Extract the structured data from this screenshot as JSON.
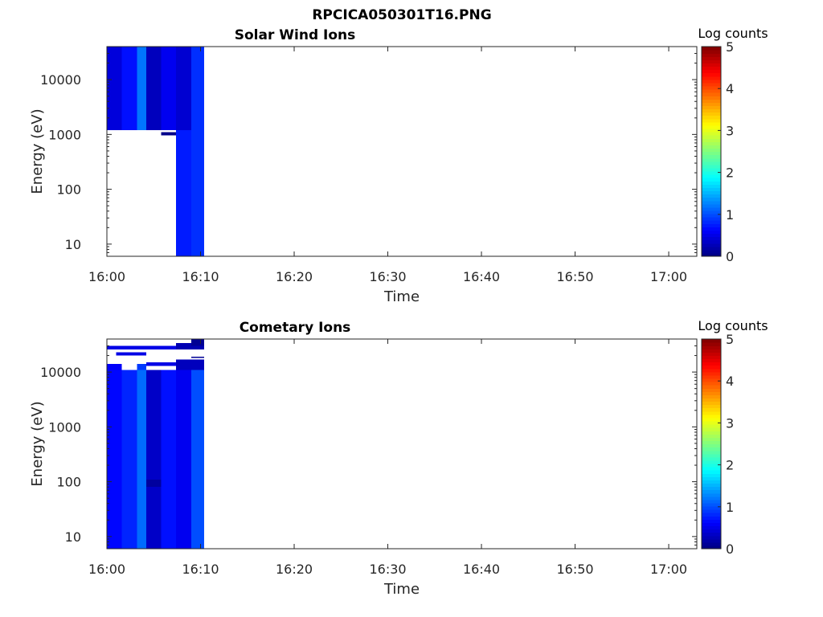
{
  "figure_title": "RPCICA050301T16.PNG",
  "chart_data": [
    {
      "type": "heatmap",
      "title": "Solar Wind Ions",
      "xlabel": "Time",
      "ylabel": "Energy (eV)",
      "y_scale": "log",
      "xlim": [
        "16:00",
        "17:03"
      ],
      "ylim": [
        6,
        40000
      ],
      "x_ticks": [
        "16:00",
        "16:10",
        "16:20",
        "16:30",
        "16:40",
        "16:50",
        "17:00"
      ],
      "y_ticks": [
        "10",
        "100",
        "1000",
        "10000"
      ],
      "colorbar": {
        "label": "Log counts",
        "min": 0,
        "max": 5,
        "ticks": [
          "0",
          "1",
          "2",
          "3",
          "4",
          "5"
        ],
        "colormap": "jet"
      },
      "cells": [
        {
          "t0": 0.0,
          "t1": 1.6,
          "e0": 1200,
          "e1": 40000,
          "v": 0.45
        },
        {
          "t0": 1.6,
          "t1": 3.2,
          "e0": 1200,
          "e1": 40000,
          "v": 0.7
        },
        {
          "t0": 3.2,
          "t1": 4.2,
          "e0": 1200,
          "e1": 40000,
          "v": 1.2
        },
        {
          "t0": 4.2,
          "t1": 5.8,
          "e0": 1200,
          "e1": 40000,
          "v": 0.3
        },
        {
          "t0": 5.8,
          "t1": 7.4,
          "e0": 1200,
          "e1": 40000,
          "v": 0.55
        },
        {
          "t0": 7.4,
          "t1": 9.0,
          "e0": 1200,
          "e1": 40000,
          "v": 0.4
        },
        {
          "t0": 7.4,
          "t1": 9.0,
          "e0": 6,
          "e1": 1200,
          "v": 0.75
        },
        {
          "t0": 9.0,
          "t1": 10.4,
          "e0": 6,
          "e1": 40000,
          "v": 0.85
        },
        {
          "t0": 5.8,
          "t1": 7.4,
          "e0": 960,
          "e1": 1100,
          "v": 0.05
        }
      ]
    },
    {
      "type": "heatmap",
      "title": "Cometary Ions",
      "xlabel": "Time",
      "ylabel": "Energy (eV)",
      "y_scale": "log",
      "xlim": [
        "16:00",
        "17:03"
      ],
      "ylim": [
        6,
        40000
      ],
      "x_ticks": [
        "16:00",
        "16:10",
        "16:20",
        "16:30",
        "16:40",
        "16:50",
        "17:00"
      ],
      "y_ticks": [
        "10",
        "100",
        "1000",
        "10000"
      ],
      "colorbar": {
        "label": "Log counts",
        "min": 0,
        "max": 5,
        "ticks": [
          "0",
          "1",
          "2",
          "3",
          "4",
          "5"
        ],
        "colormap": "jet"
      },
      "cells": [
        {
          "t0": 0.0,
          "t1": 1.6,
          "e0": 6,
          "e1": 11000,
          "v": 0.65
        },
        {
          "t0": 1.6,
          "t1": 3.2,
          "e0": 6,
          "e1": 11000,
          "v": 0.8
        },
        {
          "t0": 3.2,
          "t1": 4.2,
          "e0": 6,
          "e1": 11000,
          "v": 1.15
        },
        {
          "t0": 4.2,
          "t1": 5.8,
          "e0": 6,
          "e1": 11000,
          "v": 0.35
        },
        {
          "t0": 5.8,
          "t1": 7.4,
          "e0": 6,
          "e1": 11000,
          "v": 0.7
        },
        {
          "t0": 7.4,
          "t1": 9.0,
          "e0": 6,
          "e1": 11000,
          "v": 0.55
        },
        {
          "t0": 9.0,
          "t1": 10.4,
          "e0": 6,
          "e1": 11000,
          "v": 1.0
        },
        {
          "t0": 0.0,
          "t1": 1.6,
          "e0": 11000,
          "e1": 14000,
          "v": 0.6
        },
        {
          "t0": 3.2,
          "t1": 4.2,
          "e0": 11000,
          "e1": 14000,
          "v": 0.9
        },
        {
          "t0": 7.4,
          "t1": 10.4,
          "e0": 11000,
          "e1": 17000,
          "v": 0.3
        },
        {
          "t0": 4.2,
          "t1": 7.4,
          "e0": 13000,
          "e1": 15000,
          "v": 0.5
        },
        {
          "t0": 1.0,
          "t1": 4.2,
          "e0": 20000,
          "e1": 23000,
          "v": 0.5
        },
        {
          "t0": 0.0,
          "t1": 7.4,
          "e0": 26000,
          "e1": 30000,
          "v": 0.5
        },
        {
          "t0": 7.4,
          "t1": 10.4,
          "e0": 26000,
          "e1": 34000,
          "v": 0.25
        },
        {
          "t0": 9.0,
          "t1": 10.4,
          "e0": 30000,
          "e1": 40000,
          "v": 0.1
        },
        {
          "t0": 9.0,
          "t1": 10.4,
          "e0": 18000,
          "e1": 19000,
          "v": 0.1
        },
        {
          "t0": 4.2,
          "t1": 5.8,
          "e0": 80,
          "e1": 110,
          "v": 0.15
        }
      ]
    }
  ]
}
